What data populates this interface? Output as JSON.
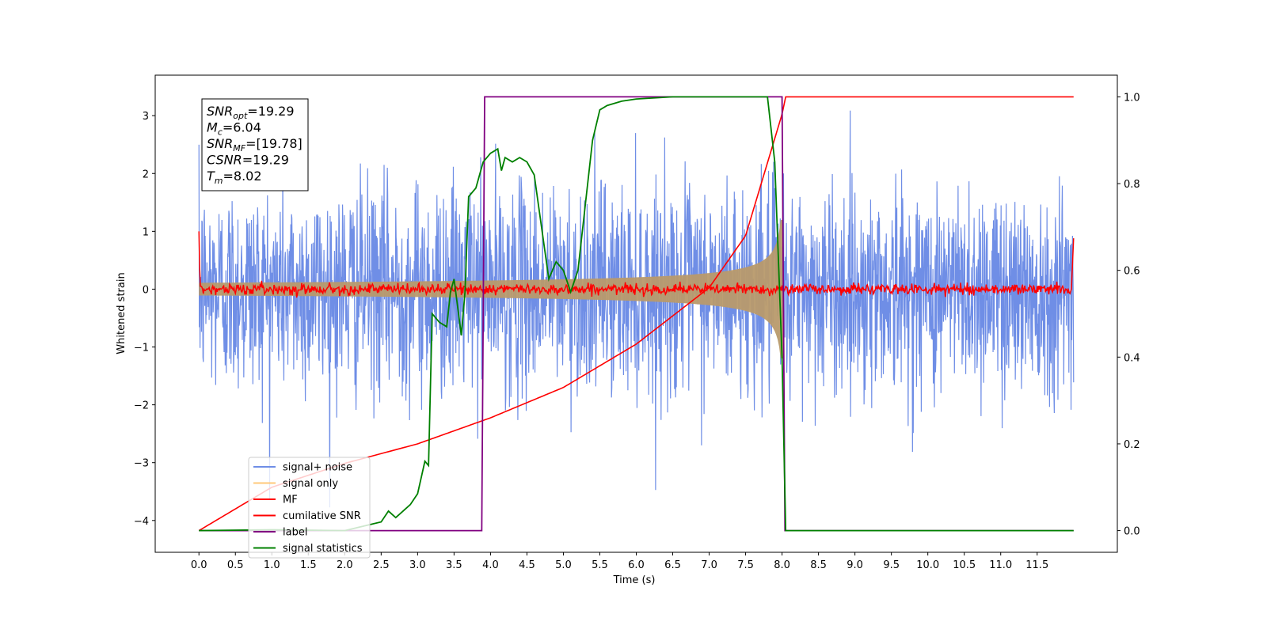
{
  "chart_data": {
    "type": "line",
    "xlabel": "Time (s)",
    "ylabel": "Whitened strain",
    "xlim": [
      -0.6,
      12.6
    ],
    "ylim": [
      -4.55,
      3.7
    ],
    "y2lim": [
      -0.05,
      1.05
    ],
    "x_ticks": [
      "0.0",
      "0.5",
      "1.0",
      "1.5",
      "2.0",
      "2.5",
      "3.0",
      "3.5",
      "4.0",
      "4.5",
      "5.0",
      "5.5",
      "6.0",
      "6.5",
      "7.0",
      "7.5",
      "8.0",
      "8.5",
      "9.0",
      "9.5",
      "10.0",
      "10.5",
      "11.0",
      "11.5"
    ],
    "y_ticks": [
      "3",
      "2",
      "1",
      "0",
      "−1",
      "−2",
      "−3",
      "−4"
    ],
    "y2_ticks": [
      "1.0",
      "0.8",
      "0.6",
      "0.4",
      "0.2",
      "0.0"
    ],
    "grid": false,
    "legend_position": "lower-left",
    "annotation": {
      "lines": [
        {
          "name": "SNR",
          "sub": "opt",
          "value": "=19.29"
        },
        {
          "name": "M",
          "sub": "c",
          "value": "=6.04"
        },
        {
          "name": "SNR",
          "sub": "MF",
          "value": "=[19.78]"
        },
        {
          "name": "CSNR",
          "sub": "",
          "value": "=19.29"
        },
        {
          "name": "T",
          "sub": "m",
          "value": "=8.02"
        }
      ]
    },
    "series": [
      {
        "name": "signal+ noise",
        "color": "#6f8ee6",
        "axis": "left",
        "description_values": {
          "noise_std": 0.9,
          "t_start": 0.0,
          "t_end": 12.0
        }
      },
      {
        "name": "signal only",
        "color": "#ffc87a",
        "axis": "left",
        "description_values": {
          "t_start": 0.0,
          "t_merge": 8.02,
          "amplitude_at_merge": 1.2
        }
      },
      {
        "name": "MF",
        "color": "#ff0000",
        "axis": "left",
        "description_values": {
          "baseline": 0.0,
          "start_value": 1.0,
          "end_value": 0.88
        }
      },
      {
        "name": "cumilative SNR",
        "color": "#ff0000",
        "axis": "right",
        "x": [
          0.0,
          1.0,
          2.0,
          3.0,
          4.0,
          5.0,
          6.0,
          7.0,
          7.5,
          8.0,
          8.05,
          12.0
        ],
        "y": [
          0.0,
          0.1,
          0.155,
          0.2,
          0.26,
          0.33,
          0.43,
          0.56,
          0.68,
          0.96,
          1.0,
          1.0
        ]
      },
      {
        "name": "label",
        "color": "#800080",
        "axis": "right",
        "x": [
          0.0,
          3.88,
          3.92,
          8.0,
          8.04,
          12.0
        ],
        "y": [
          0.0,
          0.0,
          1.0,
          1.0,
          0.0,
          0.0
        ]
      },
      {
        "name": "signal statistics",
        "color": "#008000",
        "axis": "right",
        "x": [
          0.0,
          1.0,
          2.0,
          2.5,
          2.6,
          2.7,
          2.8,
          2.9,
          3.0,
          3.1,
          3.15,
          3.2,
          3.3,
          3.4,
          3.45,
          3.5,
          3.6,
          3.65,
          3.7,
          3.8,
          3.9,
          4.0,
          4.1,
          4.15,
          4.2,
          4.3,
          4.4,
          4.5,
          4.6,
          4.7,
          4.8,
          4.9,
          5.0,
          5.1,
          5.2,
          5.3,
          5.4,
          5.5,
          5.6,
          5.8,
          6.0,
          6.5,
          7.0,
          7.5,
          7.8,
          7.9,
          8.0,
          8.05,
          12.0
        ],
        "y": [
          0.0,
          0.002,
          0.0,
          0.02,
          0.045,
          0.03,
          0.045,
          0.06,
          0.085,
          0.16,
          0.15,
          0.5,
          0.48,
          0.47,
          0.55,
          0.58,
          0.45,
          0.55,
          0.77,
          0.79,
          0.85,
          0.87,
          0.88,
          0.83,
          0.86,
          0.85,
          0.86,
          0.85,
          0.82,
          0.7,
          0.58,
          0.62,
          0.6,
          0.55,
          0.6,
          0.75,
          0.9,
          0.97,
          0.98,
          0.99,
          0.995,
          1.0,
          1.0,
          1.0,
          1.0,
          0.85,
          0.4,
          0.0,
          0.0
        ]
      }
    ]
  }
}
